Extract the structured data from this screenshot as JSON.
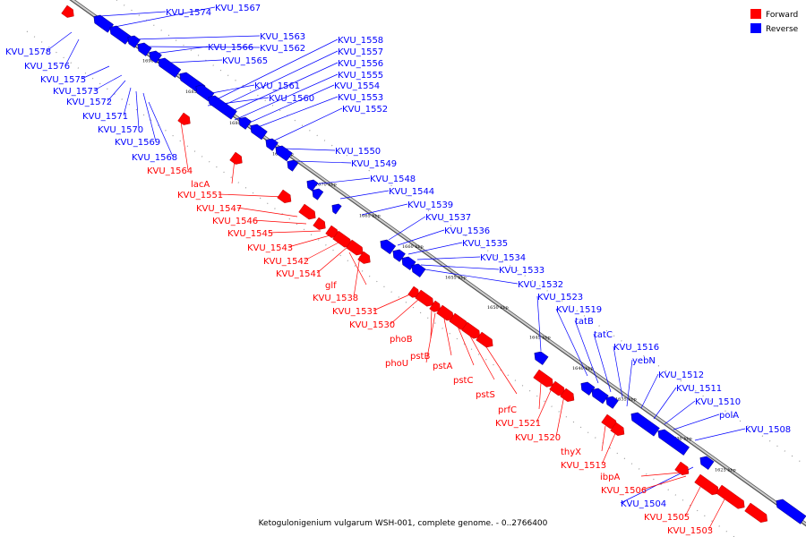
{
  "caption": "Ketogulonigenium vulgarum WSH-001, complete genome. - 0..2766400",
  "legend": [
    {
      "label": "Forward",
      "color": "#ff0000"
    },
    {
      "label": "Reverse",
      "color": "#0000ff"
    }
  ],
  "colors": {
    "forward": "#ff0000",
    "reverse": "#0000ff",
    "backbone": "#999999"
  },
  "ticks": [
    "1690 kbp",
    "1685 kbp",
    "1680 kbp",
    "1675 kbp",
    "1670 kbp",
    "1665 kbp",
    "1660 kbp",
    "1655 kbp",
    "1650 kbp",
    "1645 kbp",
    "1640 kbp",
    "1635 kbp",
    "1630 kbp",
    "1625 kbp"
  ],
  "reverse_genes": [
    "KVU_1574",
    "KVU_1567",
    "KVU_1563",
    "KVU_1562",
    "KVU_1566",
    "KVU_1565",
    "KVU_1558",
    "KVU_1557",
    "KVU_1556",
    "KVU_1555",
    "KVU_1554",
    "KVU_1553",
    "KVU_1552",
    "KVU_1561",
    "KVU_1560",
    "KVU_1550",
    "KVU_1549",
    "KVU_1548",
    "KVU_1544",
    "KVU_1539",
    "KVU_1537",
    "KVU_1536",
    "KVU_1535",
    "KVU_1534",
    "KVU_1533",
    "KVU_1532",
    "KVU_1523",
    "KVU_1519",
    "tatB",
    "tatC",
    "KVU_1516",
    "yebN",
    "KVU_1512",
    "KVU_1511",
    "KVU_1510",
    "polA",
    "KVU_1508",
    "KVU_1578",
    "KVU_1576",
    "KVU_1575",
    "KVU_1573",
    "KVU_1572",
    "KVU_1571",
    "KVU_1570",
    "KVU_1569",
    "KVU_1568",
    "KVU_1504"
  ],
  "forward_genes": [
    "KVU_1564",
    "lacA",
    "KVU_1551",
    "KVU_1547",
    "KVU_1546",
    "KVU_1545",
    "KVU_1543",
    "KVU_1542",
    "KVU_1541",
    "glf",
    "KVU_1538",
    "KVU_1531",
    "KVU_1530",
    "phoB",
    "phoU",
    "pstB",
    "pstA",
    "pstC",
    "pstS",
    "prfC",
    "KVU_1521",
    "KVU_1520",
    "thyX",
    "KVU_1513",
    "ibpA",
    "KVU_1506",
    "KVU_1505",
    "KVU_1503"
  ]
}
